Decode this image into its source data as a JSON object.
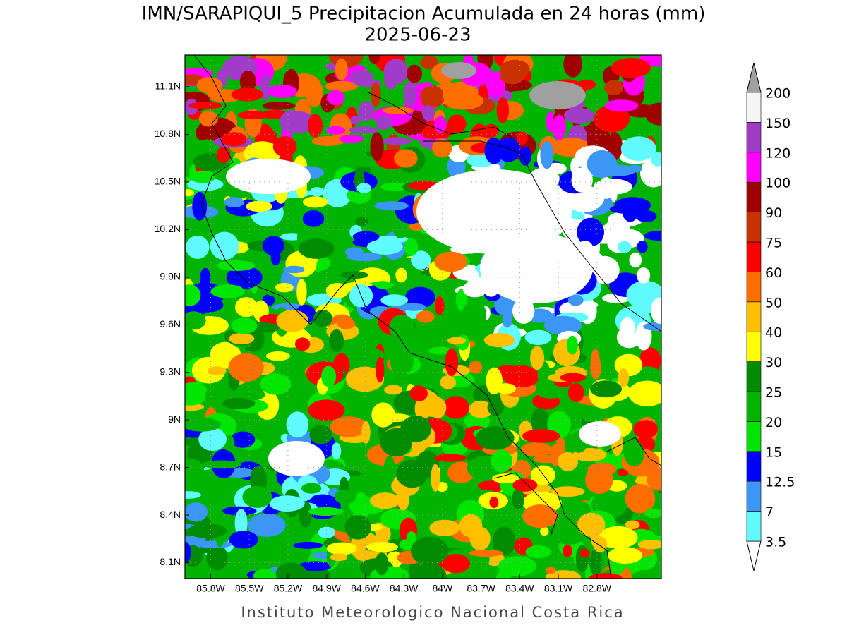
{
  "title": "IMN/SARAPIQUI_5 Precipitacion Acumulada en 24 horas (mm)",
  "date": "2025-06-23",
  "map": {
    "latlim": [
      8.0,
      11.3
    ],
    "lonlim": [
      -86.0,
      -82.3
    ],
    "lat_ticks": [
      {
        "value": 11.1,
        "label": "11.1N"
      },
      {
        "value": 10.8,
        "label": "10.8N"
      },
      {
        "value": 10.5,
        "label": "10.5N"
      },
      {
        "value": 10.2,
        "label": "10.2N"
      },
      {
        "value": 9.9,
        "label": "9.9N"
      },
      {
        "value": 9.6,
        "label": "9.6N"
      },
      {
        "value": 9.3,
        "label": "9.3N"
      },
      {
        "value": 9,
        "label": "9N"
      },
      {
        "value": 8.7,
        "label": "8.7N"
      },
      {
        "value": 8.4,
        "label": "8.4N"
      },
      {
        "value": 8.1,
        "label": "8.1N"
      }
    ],
    "lon_ticks": [
      {
        "value": -85.8,
        "label": "85.8W"
      },
      {
        "value": -85.5,
        "label": "85.5W"
      },
      {
        "value": -85.2,
        "label": "85.2W"
      },
      {
        "value": -84.9,
        "label": "84.9W"
      },
      {
        "value": -84.6,
        "label": "84.6W"
      },
      {
        "value": -84.3,
        "label": "84.3W"
      },
      {
        "value": -84,
        "label": "84W"
      },
      {
        "value": -83.7,
        "label": "83.7W"
      },
      {
        "value": -83.4,
        "label": "83.4W"
      },
      {
        "value": -83.1,
        "label": "83.1W"
      },
      {
        "value": -82.8,
        "label": "82.8W"
      }
    ],
    "grid": true
  },
  "colorbar": {
    "levels": [
      3.5,
      7,
      12.5,
      15,
      20,
      25,
      30,
      40,
      50,
      60,
      75,
      90,
      100,
      120,
      150,
      200
    ],
    "colors": [
      "#ffffff",
      "#5ffbff",
      "#3c96f5",
      "#0000ff",
      "#00e600",
      "#00b400",
      "#008c00",
      "#ffff00",
      "#ffc000",
      "#ff6e00",
      "#ff0000",
      "#c83200",
      "#a00000",
      "#ff00ff",
      "#a03cc8",
      "#f5f5f5",
      "#a0a0a0"
    ]
  },
  "footer": "Instituto Meteorologico Nacional Costa Rica"
}
